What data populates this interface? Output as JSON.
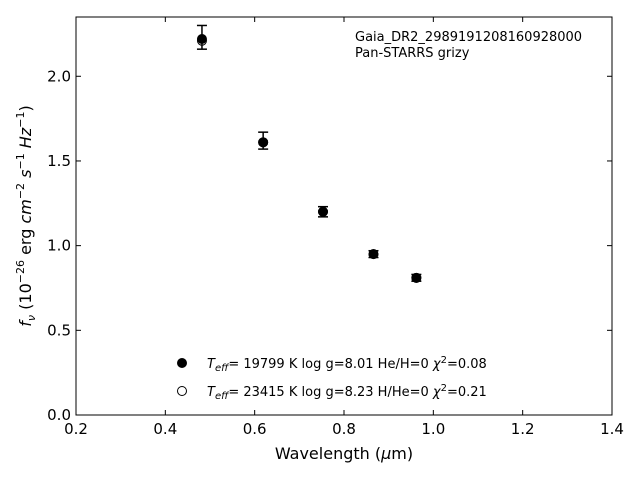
{
  "chart_data": {
    "type": "scatter",
    "title": "",
    "annotations": [
      "Gaia_DR2_2989191208160928000",
      "Pan-STARRS grizy"
    ],
    "xlabel": "Wavelength (μm)",
    "ylabel": "f_ν (10^-26 erg cm^-2 s^-1 Hz^-1)",
    "xlim": [
      0.2,
      1.4
    ],
    "ylim": [
      0.0,
      2.35
    ],
    "xticks": [
      "0.2",
      "0.4",
      "0.6",
      "0.8",
      "1.0",
      "1.2",
      "1.4"
    ],
    "yticks": [
      "0.0",
      "0.5",
      "1.0",
      "1.5",
      "2.0"
    ],
    "grid": false,
    "legend_position": "bottom-center",
    "observed": {
      "x": [
        0.482,
        0.619,
        0.753,
        0.866,
        0.962
      ],
      "y": [
        2.23,
        1.62,
        1.2,
        0.95,
        0.81
      ],
      "yerr": [
        0.07,
        0.05,
        0.03,
        0.02,
        0.02
      ]
    },
    "series": [
      {
        "name": "T_eff= 19799 K  log g=8.01  He/H=0  χ²=0.08",
        "marker": "filled-circle",
        "x": [
          0.482,
          0.619,
          0.753,
          0.866,
          0.962
        ],
        "y": [
          2.22,
          1.61,
          1.2,
          0.95,
          0.81
        ]
      },
      {
        "name": "T_eff= 23415 K  log g=8.23  H/He=0  χ²=0.21",
        "marker": "open-circle",
        "x": [
          0.482,
          0.619,
          0.753,
          0.866,
          0.962
        ],
        "y": [
          2.21,
          1.61,
          1.2,
          0.95,
          0.81
        ]
      }
    ],
    "colors": {
      "marker": "#000000",
      "axis": "#000000"
    }
  }
}
